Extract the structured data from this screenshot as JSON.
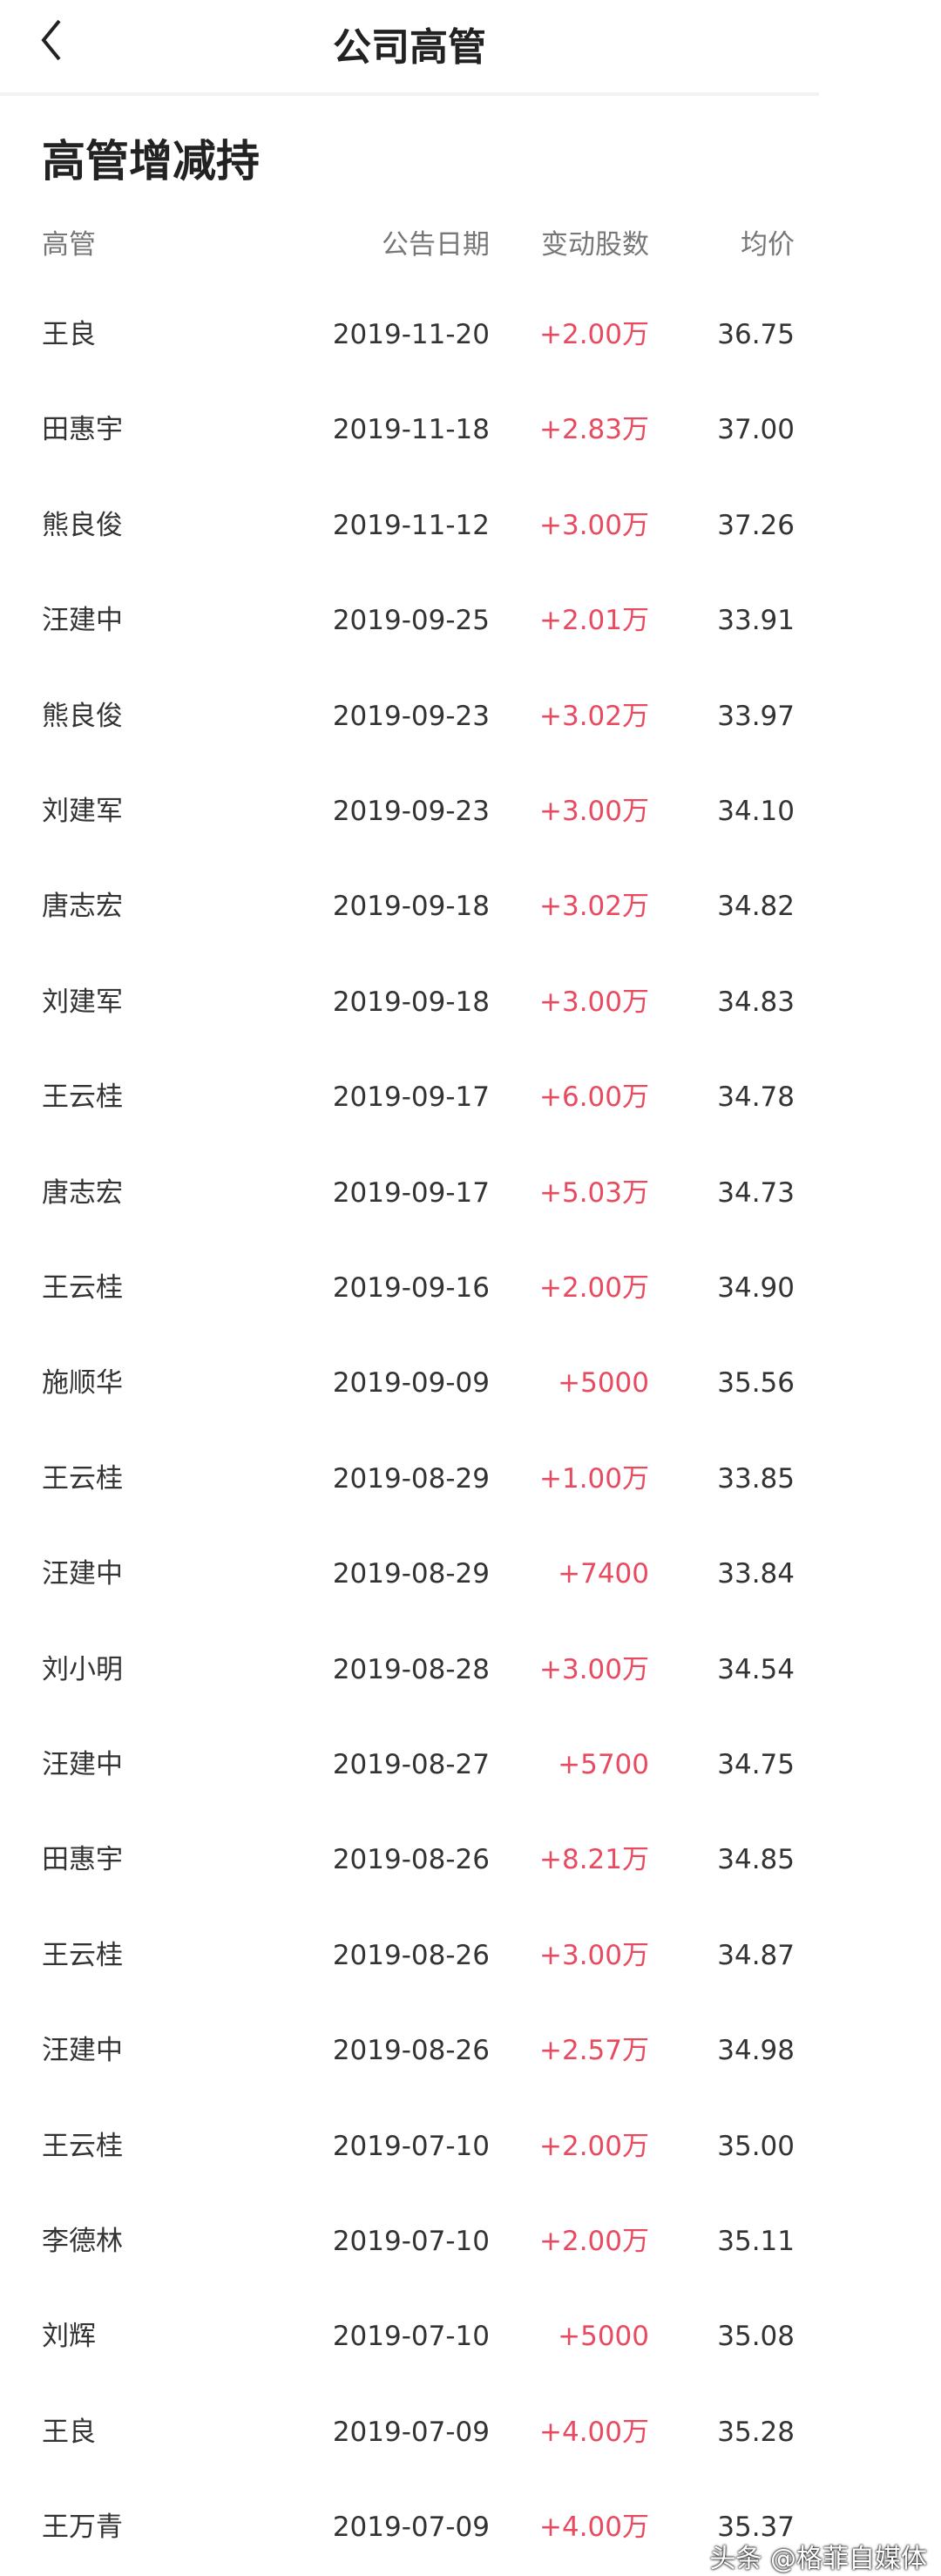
{
  "nav": {
    "title": "公司高管",
    "back_icon": "chevron-left-icon"
  },
  "section_title": "高管增减持",
  "table": {
    "headers": {
      "name": "高管",
      "date": "公告日期",
      "change": "变动股数",
      "price": "均价"
    },
    "rows": [
      {
        "name": "王良",
        "date": "2019-11-20",
        "change": "+2.00万",
        "price": "36.75"
      },
      {
        "name": "田惠宇",
        "date": "2019-11-18",
        "change": "+2.83万",
        "price": "37.00"
      },
      {
        "name": "熊良俊",
        "date": "2019-11-12",
        "change": "+3.00万",
        "price": "37.26"
      },
      {
        "name": "汪建中",
        "date": "2019-09-25",
        "change": "+2.01万",
        "price": "33.91"
      },
      {
        "name": "熊良俊",
        "date": "2019-09-23",
        "change": "+3.02万",
        "price": "33.97"
      },
      {
        "name": "刘建军",
        "date": "2019-09-23",
        "change": "+3.00万",
        "price": "34.10"
      },
      {
        "name": "唐志宏",
        "date": "2019-09-18",
        "change": "+3.02万",
        "price": "34.82"
      },
      {
        "name": "刘建军",
        "date": "2019-09-18",
        "change": "+3.00万",
        "price": "34.83"
      },
      {
        "name": "王云桂",
        "date": "2019-09-17",
        "change": "+6.00万",
        "price": "34.78"
      },
      {
        "name": "唐志宏",
        "date": "2019-09-17",
        "change": "+5.03万",
        "price": "34.73"
      },
      {
        "name": "王云桂",
        "date": "2019-09-16",
        "change": "+2.00万",
        "price": "34.90"
      },
      {
        "name": "施顺华",
        "date": "2019-09-09",
        "change": "+5000",
        "price": "35.56"
      },
      {
        "name": "王云桂",
        "date": "2019-08-29",
        "change": "+1.00万",
        "price": "33.85"
      },
      {
        "name": "汪建中",
        "date": "2019-08-29",
        "change": "+7400",
        "price": "33.84"
      },
      {
        "name": "刘小明",
        "date": "2019-08-28",
        "change": "+3.00万",
        "price": "34.54"
      },
      {
        "name": "汪建中",
        "date": "2019-08-27",
        "change": "+5700",
        "price": "34.75"
      },
      {
        "name": "田惠宇",
        "date": "2019-08-26",
        "change": "+8.21万",
        "price": "34.85"
      },
      {
        "name": "王云桂",
        "date": "2019-08-26",
        "change": "+3.00万",
        "price": "34.87"
      },
      {
        "name": "汪建中",
        "date": "2019-08-26",
        "change": "+2.57万",
        "price": "34.98"
      },
      {
        "name": "王云桂",
        "date": "2019-07-10",
        "change": "+2.00万",
        "price": "35.00"
      },
      {
        "name": "李德林",
        "date": "2019-07-10",
        "change": "+2.00万",
        "price": "35.11"
      },
      {
        "name": "刘辉",
        "date": "2019-07-10",
        "change": "+5000",
        "price": "35.08"
      },
      {
        "name": "王良",
        "date": "2019-07-09",
        "change": "+4.00万",
        "price": "35.28"
      },
      {
        "name": "王万青",
        "date": "2019-07-09",
        "change": "+4.00万",
        "price": "35.37"
      }
    ]
  },
  "watermark": "头条 @格菲自媒体",
  "colors": {
    "increase": "#e84a5f",
    "text": "#333333",
    "header_text": "#777777"
  }
}
